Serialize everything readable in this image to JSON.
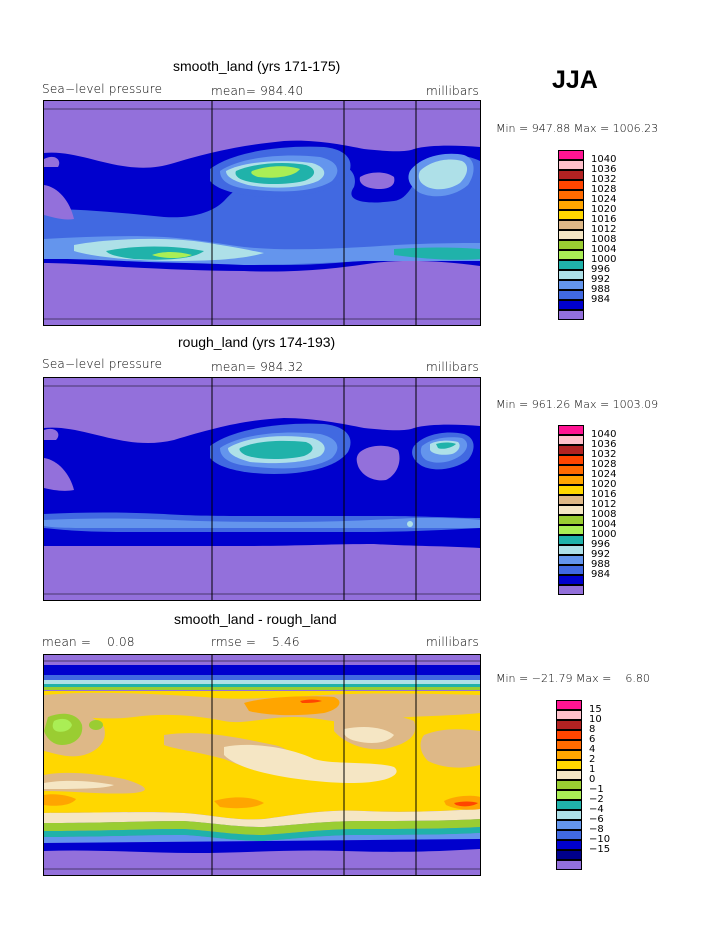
{
  "season": "JJA",
  "colors": {
    "pressure_scale": [
      "#9370db",
      "#0000cd",
      "#4169e1",
      "#6495ed",
      "#aee0e8",
      "#20b2aa",
      "#aaee55",
      "#9acd32",
      "#f5e6c4",
      "#deb887",
      "#ffd700",
      "#ffa500",
      "#ff6a00",
      "#ff4500",
      "#b22222",
      "#ffc0cb",
      "#ff1493"
    ],
    "diff_scale": [
      "#9370db",
      "#00008b",
      "#0000cd",
      "#4169e1",
      "#6495ed",
      "#aee0e8",
      "#20b2aa",
      "#aaee55",
      "#9acd32",
      "#f5e6c4",
      "#ffd700",
      "#ffa500",
      "#ff6a00",
      "#ff4500",
      "#b22222",
      "#ffc0cb",
      "#ff1493"
    ]
  },
  "panels": [
    {
      "title": "smooth_land (yrs 171-175)",
      "left_label": "Sea−level pressure",
      "center_label": "mean= 984.40",
      "right_label": "millibars",
      "minmax": "Min = 947.88 Max = 1006.23",
      "colorbar_labels": [
        "1040",
        "1036",
        "1032",
        "1028",
        "1024",
        "1020",
        "1016",
        "1012",
        "1008",
        "1004",
        "1000",
        "996",
        "992",
        "988",
        "984"
      ]
    },
    {
      "title": "rough_land (yrs 174-193)",
      "left_label": "Sea−level pressure",
      "center_label": "mean= 984.32",
      "right_label": "millibars",
      "minmax": "Min = 961.26 Max = 1003.09",
      "colorbar_labels": [
        "1040",
        "1036",
        "1032",
        "1028",
        "1024",
        "1020",
        "1016",
        "1012",
        "1008",
        "1004",
        "1000",
        "996",
        "992",
        "988",
        "984"
      ]
    },
    {
      "title": "smooth_land - rough_land",
      "left_label": "mean =    0.08",
      "center_label": "rmse =    5.46",
      "right_label": "millibars",
      "minmax": "Min = −21.79 Max =    6.80",
      "colorbar_labels": [
        "15",
        "10",
        "8",
        "6",
        "4",
        "2",
        "1",
        "0",
        "−1",
        "−2",
        "−4",
        "−6",
        "−8",
        "−10",
        "−15"
      ]
    }
  ],
  "chart_data": [
    {
      "type": "heatmap",
      "title": "smooth_land (yrs 171-175)",
      "field": "Sea-level pressure",
      "units": "millibars",
      "mean": 984.4,
      "min": 947.88,
      "max": 1006.23,
      "contour_levels": [
        984,
        988,
        992,
        996,
        1000,
        1004,
        1008,
        1012,
        1016,
        1020,
        1024,
        1028,
        1032,
        1036,
        1040
      ]
    },
    {
      "type": "heatmap",
      "title": "rough_land (yrs 174-193)",
      "field": "Sea-level pressure",
      "units": "millibars",
      "mean": 984.32,
      "min": 961.26,
      "max": 1003.09,
      "contour_levels": [
        984,
        988,
        992,
        996,
        1000,
        1004,
        1008,
        1012,
        1016,
        1020,
        1024,
        1028,
        1032,
        1036,
        1040
      ]
    },
    {
      "type": "heatmap",
      "title": "smooth_land - rough_land",
      "units": "millibars",
      "mean": 0.08,
      "rmse": 5.46,
      "min": -21.79,
      "max": 6.8,
      "contour_levels": [
        -15,
        -10,
        -8,
        -6,
        -4,
        -2,
        -1,
        0,
        1,
        2,
        4,
        6,
        8,
        10,
        15
      ]
    }
  ]
}
